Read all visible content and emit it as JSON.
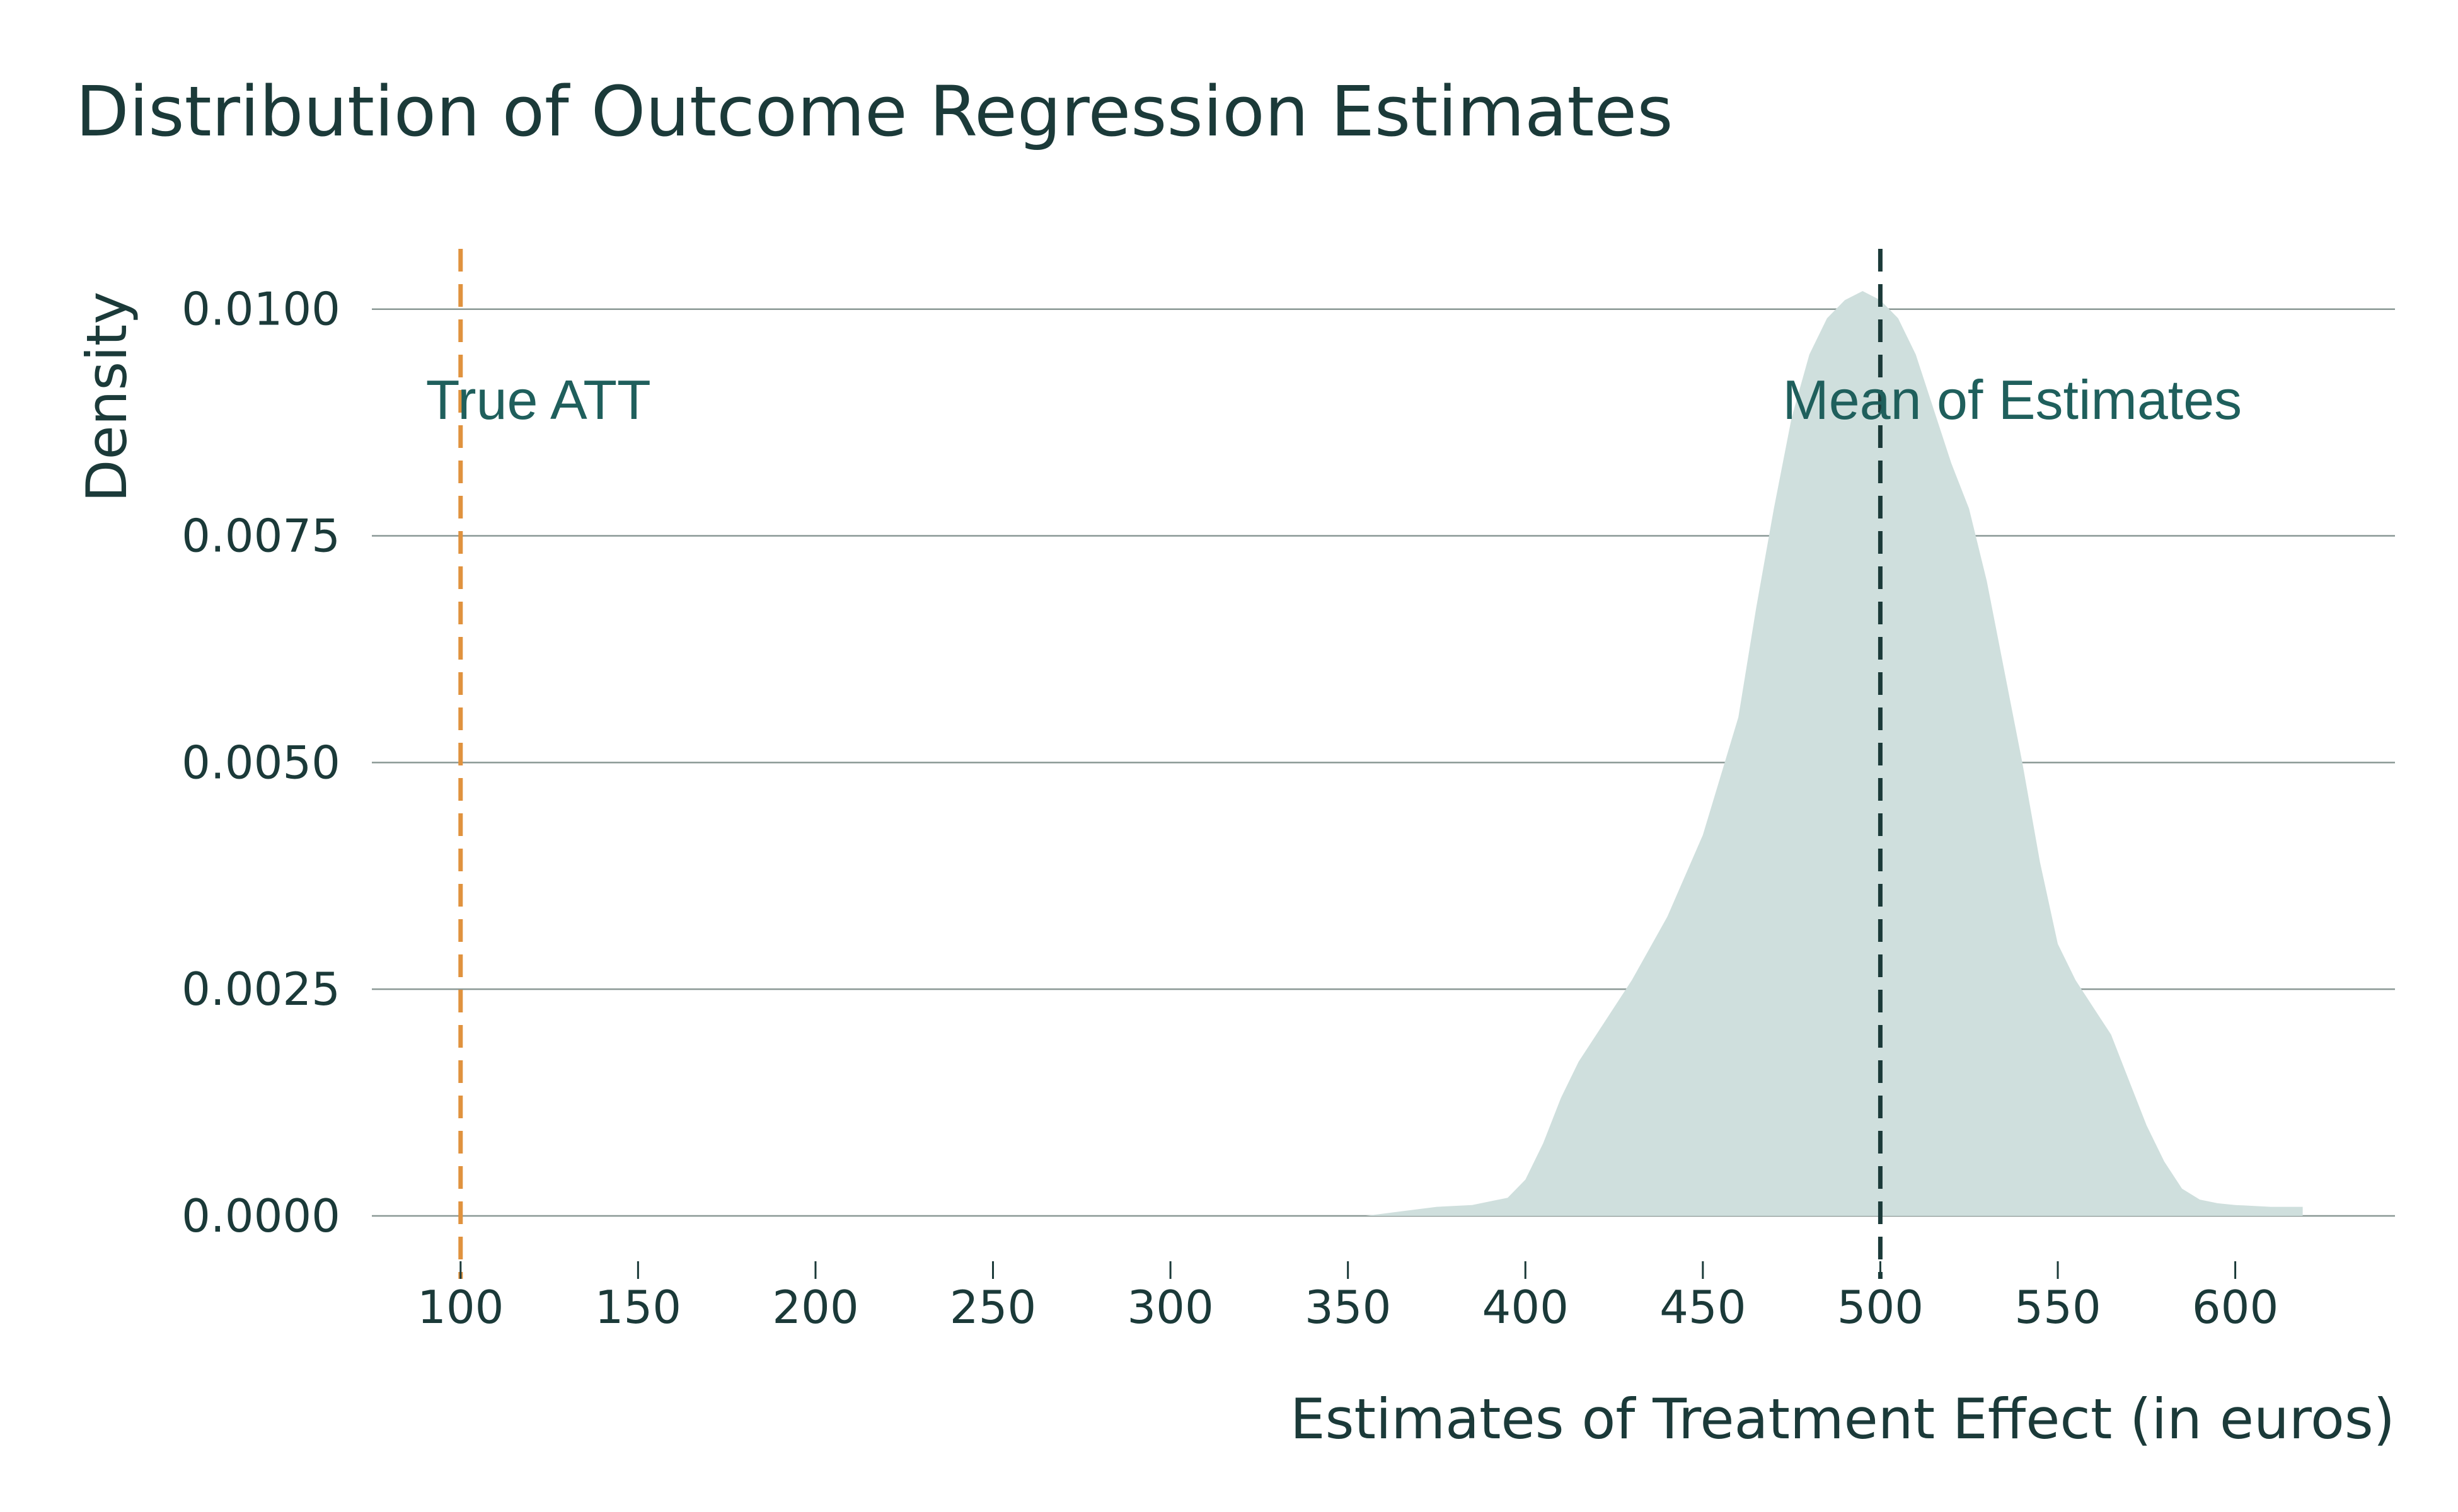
{
  "chart_data": {
    "type": "area",
    "title": "Distribution of Outcome Regression Estimates",
    "xlabel": "Estimates of Treatment Effect (in euros)",
    "ylabel": "Density",
    "xlim": [
      75,
      645
    ],
    "ylim": [
      0,
      0.0107
    ],
    "x_ticks": [
      100,
      150,
      200,
      250,
      300,
      350,
      400,
      450,
      500,
      550,
      600
    ],
    "x_tick_labels": [
      "100",
      "150",
      "200",
      "250",
      "300",
      "350",
      "400",
      "450",
      "500",
      "550",
      "600"
    ],
    "y_ticks": [
      0,
      0.0025,
      0.005,
      0.0075,
      0.01
    ],
    "y_tick_labels": [
      "0.0000",
      "0.0025",
      "0.0050",
      "0.0075",
      "0.0100"
    ],
    "grid": "horizontal",
    "density": {
      "x": [
        355,
        365,
        375,
        385,
        395,
        400,
        405,
        410,
        415,
        420,
        430,
        440,
        450,
        460,
        465,
        470,
        475,
        480,
        485,
        490,
        495,
        500,
        505,
        510,
        515,
        520,
        525,
        530,
        535,
        540,
        545,
        550,
        555,
        560,
        565,
        570,
        575,
        580,
        585,
        590,
        595,
        600,
        610,
        619
      ],
      "y": [
        0.0,
        5e-05,
        0.0001,
        0.00012,
        0.0002,
        0.0004,
        0.0008,
        0.0013,
        0.0017,
        0.002,
        0.0026,
        0.0033,
        0.0042,
        0.0055,
        0.0067,
        0.0078,
        0.0088,
        0.0095,
        0.0099,
        0.0101,
        0.0102,
        0.0101,
        0.0099,
        0.0095,
        0.0089,
        0.0083,
        0.0078,
        0.007,
        0.006,
        0.005,
        0.0039,
        0.003,
        0.0026,
        0.0023,
        0.002,
        0.0015,
        0.001,
        0.0006,
        0.0003,
        0.00018,
        0.00014,
        0.00012,
        0.0001,
        0.0001
      ],
      "color": "#cfdfdd"
    },
    "reference_lines": [
      {
        "x": 100,
        "label": "True ATT",
        "color": "#e0923e"
      },
      {
        "x": 500,
        "label": "Mean of Estimates",
        "color": "#1b3a39"
      }
    ]
  }
}
